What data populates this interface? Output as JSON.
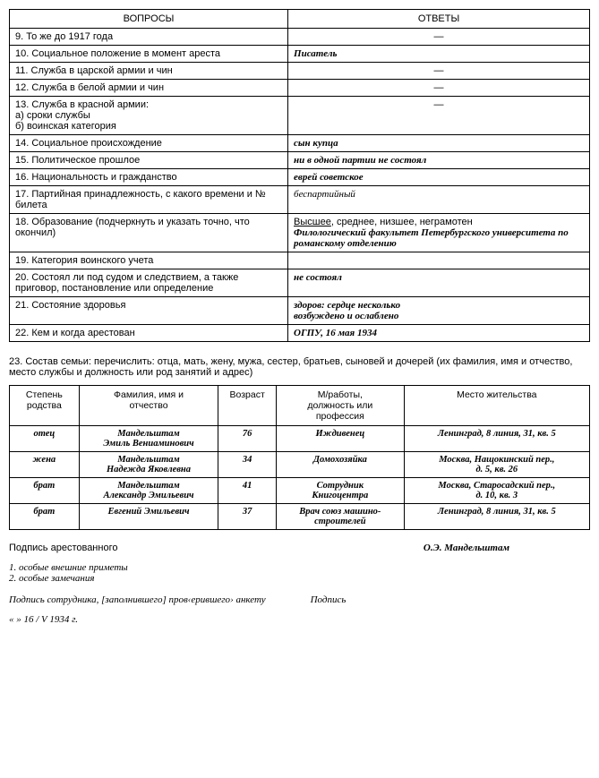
{
  "headers": {
    "q": "ВОПРОСЫ",
    "a": "ОТВЕТЫ"
  },
  "rows": [
    {
      "q": "9. То же до 1917 года",
      "a": "—",
      "style": "dash"
    },
    {
      "q": "10. Социальное положение в момент ареста",
      "a": "Писатель",
      "style": "bold"
    },
    {
      "q": "11. Служба в царской армии и чин",
      "a": "—",
      "style": "dash"
    },
    {
      "q": "12. Служба в белой армии и чин",
      "a": "—",
      "style": "dash"
    },
    {
      "q": "13. Служба в красной армии:\nа) сроки службы\nб) воинская категория",
      "a": "—",
      "style": "dash"
    },
    {
      "q": "14. Социальное происхождение",
      "a": "сын купца",
      "style": "bold"
    },
    {
      "q": "15. Политическое прошлое",
      "a": "ни в одной партии не состоял",
      "style": "bold"
    },
    {
      "q": "16. Национальность и гражданство",
      "a": "еврей    советское",
      "style": "bold"
    },
    {
      "q": "17. Партийная принадлежность, с какого времени и № билета",
      "a": "беспартийный",
      "style": "plain"
    },
    {
      "q": "18. Образование (подчеркнуть и указать точно, что окончил)",
      "a_html": "<span class='underline'>Высшее</span>, среднее, низшее, неграмотен<br><span class='answer-italic'>Филологический факультет Петербургского университета по романскому отделению</span>",
      "style": "html"
    },
    {
      "q": "19. Категория воинского учета",
      "a": "",
      "style": "plain"
    },
    {
      "q": "20. Состоял ли под судом и следствием, а также приговор, постановление или определение",
      "a": "не состоял",
      "style": "bold"
    },
    {
      "q": "21. Состояние здоровья",
      "a": "здоров: сердце несколько\nвозбуждено и ослаблено",
      "style": "bold"
    },
    {
      "q": "22. Кем и когда арестован",
      "a": "ОГПУ, 16 мая 1934",
      "style": "bold"
    }
  ],
  "section23": "23. Состав семьи: перечислить: отца, мать, жену, мужа, сестер, братьев, сыновей и дочерей (их фамилия, имя и отчество, место службы и должность или род занятий и адрес)",
  "family_headers": [
    "Степень\nродства",
    "Фамилия, имя и\nотчество",
    "Возраст",
    "М/работы,\nдолжность или\nпрофессия",
    "Место жительства"
  ],
  "family": [
    {
      "rel": "отец",
      "name": "Мандельштам\nЭмиль Вениаминович",
      "age": "76",
      "job": "Иждивенец",
      "addr": "Ленинград, 8 линия, 31, кв. 5"
    },
    {
      "rel": "жена",
      "name": "Мандельштам\nНадежда Яковлевна",
      "age": "34",
      "job": "Домохозяйка",
      "addr": "Москва, Нащокинский пер.,\nд. 5, кв. 26"
    },
    {
      "rel": "брат",
      "name": "Мандельштам\nАлександр Эмильевич",
      "age": "41",
      "job": "Сотрудник\nКнигоцентра",
      "addr": "Москва, Старосадский пер.,\nд. 10, кв. 3"
    },
    {
      "rel": "брат",
      "name": "Евгений Эмильевич",
      "age": "37",
      "job": "Врач союз машино-\nстроителей",
      "addr": "Ленинград, 8 линия, 31, кв. 5"
    }
  ],
  "footer": {
    "sig_label": "Подпись арестованного",
    "sig_value": "О.Э. Мандельштам",
    "note1": "1. особые внешние приметы",
    "note2": "2. особые замечания",
    "line2_left": "Подпись сотрудника, [заполнившего] пров‹ерившего› анкету",
    "line2_right": "Подпись",
    "date": "« » 16 / V  1934 г."
  }
}
